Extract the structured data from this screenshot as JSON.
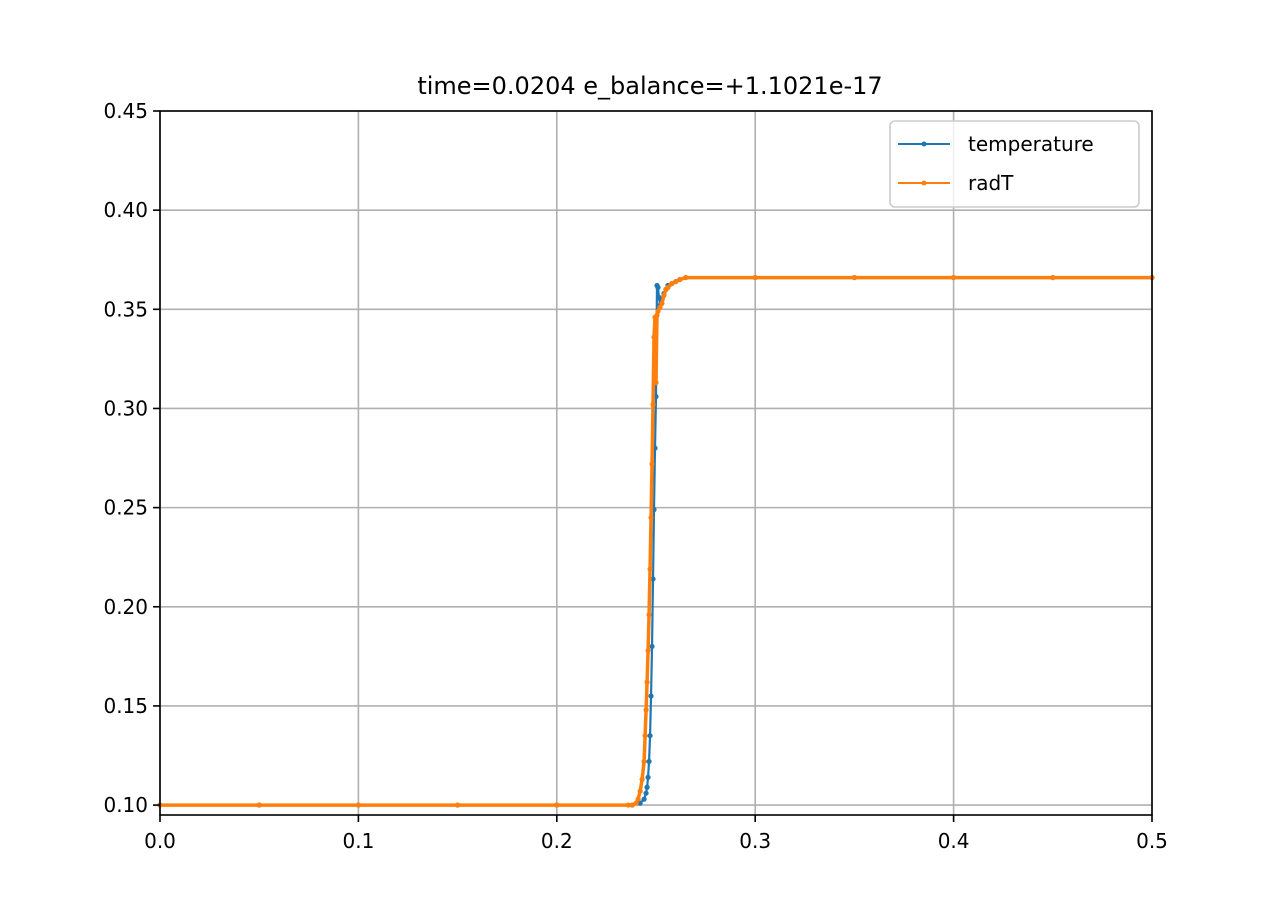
{
  "chart_data": {
    "type": "line",
    "title": "time=0.0204 e_balance=+1.1021e-17",
    "xlabel": "",
    "ylabel": "",
    "xlim": [
      0.0,
      0.5
    ],
    "ylim": [
      0.095,
      0.45
    ],
    "xticks": [
      0.0,
      0.1,
      0.2,
      0.3,
      0.4,
      0.5
    ],
    "xtick_labels": [
      "0.0",
      "0.1",
      "0.2",
      "0.3",
      "0.4",
      "0.5"
    ],
    "yticks": [
      0.1,
      0.15,
      0.2,
      0.25,
      0.3,
      0.35,
      0.4,
      0.45
    ],
    "ytick_labels": [
      "0.10",
      "0.15",
      "0.20",
      "0.25",
      "0.30",
      "0.35",
      "0.40",
      "0.45"
    ],
    "grid": true,
    "legend_position": "top-right",
    "series": [
      {
        "name": "temperature",
        "color": "#1f77b4",
        "x": [
          0.0,
          0.05,
          0.1,
          0.15,
          0.2,
          0.238,
          0.242,
          0.244,
          0.245,
          0.2455,
          0.246,
          0.2465,
          0.247,
          0.2475,
          0.248,
          0.2485,
          0.249,
          0.2495,
          0.25,
          0.2505,
          0.251,
          0.2515,
          0.252,
          0.253,
          0.254,
          0.255,
          0.256,
          0.258,
          0.26,
          0.262,
          0.265,
          0.3,
          0.35,
          0.4,
          0.45,
          0.5
        ],
        "y": [
          0.1,
          0.1,
          0.1,
          0.1,
          0.1,
          0.1,
          0.101,
          0.103,
          0.106,
          0.109,
          0.114,
          0.122,
          0.135,
          0.155,
          0.18,
          0.214,
          0.249,
          0.28,
          0.306,
          0.362,
          0.361,
          0.356,
          0.352,
          0.355,
          0.358,
          0.36,
          0.362,
          0.363,
          0.364,
          0.365,
          0.366,
          0.366,
          0.366,
          0.366,
          0.366,
          0.366
        ]
      },
      {
        "name": "radT",
        "color": "#ff7f0e",
        "x": [
          0.0,
          0.05,
          0.1,
          0.15,
          0.2,
          0.236,
          0.238,
          0.24,
          0.241,
          0.242,
          0.243,
          0.244,
          0.2445,
          0.245,
          0.2455,
          0.246,
          0.2465,
          0.247,
          0.2475,
          0.248,
          0.2485,
          0.249,
          0.2495,
          0.25,
          0.2505,
          0.251,
          0.252,
          0.253,
          0.254,
          0.255,
          0.256,
          0.258,
          0.26,
          0.262,
          0.265,
          0.3,
          0.35,
          0.4,
          0.45,
          0.5
        ],
        "y": [
          0.1,
          0.1,
          0.1,
          0.1,
          0.1,
          0.1,
          0.1,
          0.101,
          0.103,
          0.107,
          0.113,
          0.122,
          0.135,
          0.148,
          0.162,
          0.178,
          0.196,
          0.219,
          0.245,
          0.272,
          0.302,
          0.336,
          0.346,
          0.313,
          0.347,
          0.349,
          0.351,
          0.353,
          0.357,
          0.36,
          0.361,
          0.363,
          0.364,
          0.365,
          0.366,
          0.366,
          0.366,
          0.366,
          0.366,
          0.366
        ]
      }
    ]
  }
}
